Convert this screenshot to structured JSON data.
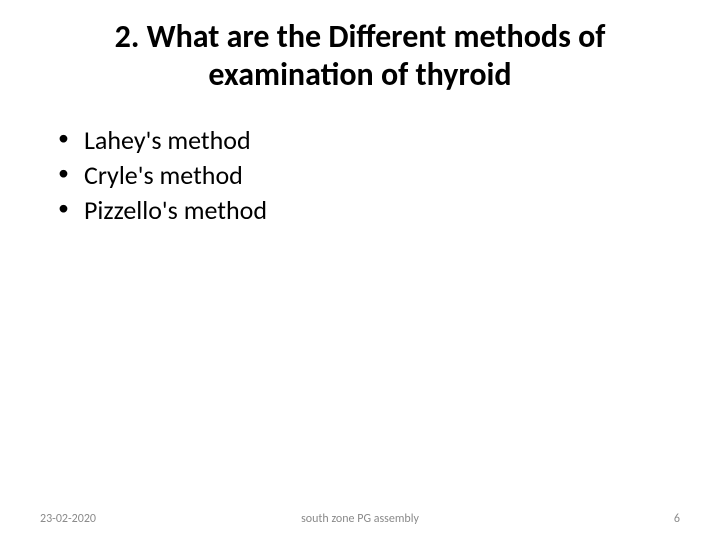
{
  "title": "2. What are the Different methods of examination of thyroid",
  "bullets": [
    "Lahey's method",
    "Cryle's method",
    "Pizzello's method"
  ],
  "footer": {
    "date": "23-02-2020",
    "center": "south zone PG assembly",
    "pageNumber": "6"
  },
  "styling": {
    "title_fontsize": 32,
    "title_color": "#000000",
    "title_fontweight": "bold",
    "bullet_fontsize": 26,
    "bullet_color": "#000000",
    "footer_fontsize": 12,
    "footer_color": "#8a8a8a",
    "background_color": "#ffffff"
  }
}
